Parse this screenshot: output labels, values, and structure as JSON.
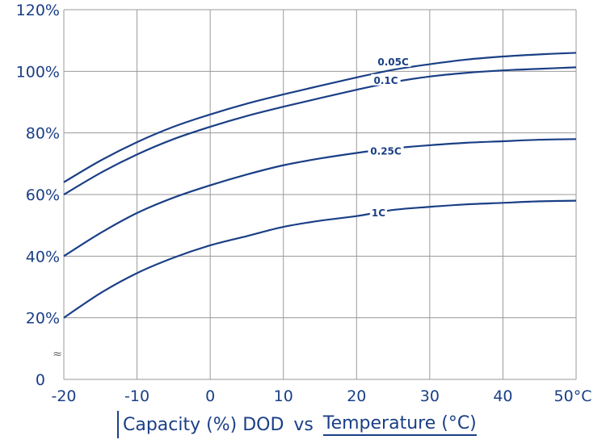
{
  "chart_data": {
    "type": "line",
    "title": "",
    "xlabel": "",
    "ylabel": "",
    "x_ticks": [
      "-20",
      "-10",
      "0",
      "10",
      "20",
      "30",
      "40",
      "50°C"
    ],
    "y_ticks": [
      "0",
      "20%",
      "40%",
      "60%",
      "80%",
      "100%",
      "120%"
    ],
    "xlim": [
      -20,
      50
    ],
    "ylim": [
      0,
      120
    ],
    "y_break_symbol": "≈",
    "grid": true,
    "line_color": "#1a3f86",
    "series": [
      {
        "name": "0.05C",
        "label_at": [
          25,
          103
        ],
        "x": [
          -20,
          -15,
          -10,
          -5,
          0,
          5,
          10,
          15,
          20,
          25,
          30,
          35,
          40,
          45,
          50
        ],
        "y": [
          64,
          71,
          77,
          82,
          86,
          89.5,
          92.5,
          95.3,
          98,
          100.5,
          102.3,
          103.8,
          104.8,
          105.5,
          106
        ]
      },
      {
        "name": "0.1C",
        "label_at": [
          24,
          97
        ],
        "x": [
          -20,
          -15,
          -10,
          -5,
          0,
          5,
          10,
          15,
          20,
          25,
          30,
          35,
          40,
          45,
          50
        ],
        "y": [
          60,
          67,
          73,
          78,
          82,
          85.5,
          88.5,
          91.3,
          94,
          96.5,
          98.3,
          99.5,
          100.3,
          100.8,
          101.3
        ]
      },
      {
        "name": "0.25C",
        "label_at": [
          24,
          74
        ],
        "x": [
          -20,
          -15,
          -10,
          -5,
          0,
          5,
          10,
          15,
          20,
          25,
          30,
          35,
          40,
          45,
          50
        ],
        "y": [
          40,
          47.5,
          54,
          59,
          63,
          66.5,
          69.5,
          71.7,
          73.5,
          75,
          76,
          76.8,
          77.3,
          77.8,
          78
        ]
      },
      {
        "name": "1C",
        "label_at": [
          23,
          54
        ],
        "x": [
          -20,
          -15,
          -10,
          -5,
          0,
          5,
          10,
          15,
          20,
          25,
          30,
          35,
          40,
          45,
          50
        ],
        "y": [
          20,
          28,
          34.5,
          39.5,
          43.5,
          46.5,
          49.5,
          51.5,
          53,
          55,
          56,
          56.8,
          57.3,
          57.8,
          58
        ]
      }
    ]
  },
  "caption": {
    "part1": "Capacity (%) DOD",
    "part2": "vs",
    "part3": "Temperature (°C)"
  }
}
